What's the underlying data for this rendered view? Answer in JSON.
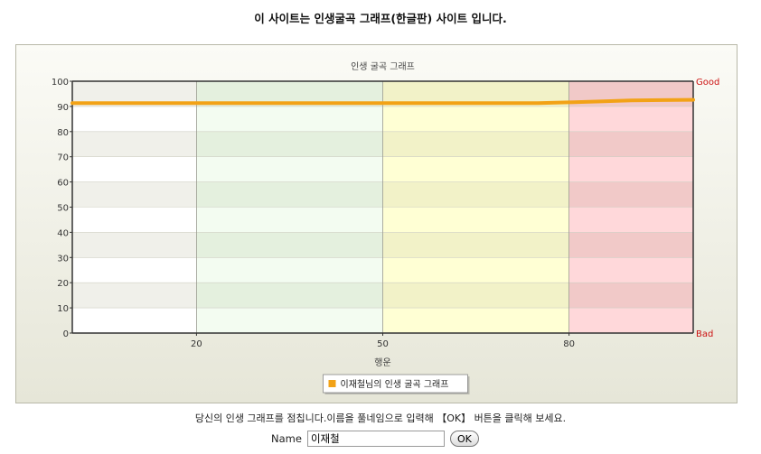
{
  "page": {
    "title": "이 사이트는 인생굴곡 그래프(한글판) 사이트 입니다.",
    "instruction": "당신의 인생 그래프를 점칩니다.이름을 풀네임으로 입력해 【OK】 버튼을 클릭해 보세요."
  },
  "form": {
    "name_label": "Name",
    "name_value": "이재철",
    "ok_label": "OK"
  },
  "chart_data": {
    "type": "line",
    "title": "인생 굴곡 그래프",
    "xlabel": "행운",
    "ylabel": "",
    "xlim": [
      0,
      100
    ],
    "ylim": [
      0,
      100
    ],
    "yticks": [
      0,
      10,
      20,
      30,
      40,
      50,
      60,
      70,
      80,
      90,
      100
    ],
    "xticks": [
      20,
      50,
      80
    ],
    "top_label": "Good",
    "bottom_label": "Bad",
    "grid": true,
    "legend_position": "bottom-center",
    "bands": [
      {
        "from": 0,
        "to": 20,
        "color_light": "#ffffff",
        "color_dark": "#f0f0ea"
      },
      {
        "from": 20,
        "to": 50,
        "color_light": "#f3fcf1",
        "color_dark": "#e4f0de"
      },
      {
        "from": 50,
        "to": 80,
        "color_light": "#ffffd4",
        "color_dark": "#f2f2c8"
      },
      {
        "from": 80,
        "to": 100,
        "color_light": "#ffd8da",
        "color_dark": "#f1c9c8"
      }
    ],
    "series": [
      {
        "name": "이재철님의 인생 굴곡 그래프",
        "color": "#f2a216",
        "x": [
          0,
          10,
          20,
          30,
          40,
          50,
          60,
          70,
          75,
          80,
          85,
          90,
          95,
          100
        ],
        "y": [
          91.3,
          91.3,
          91.3,
          91.3,
          91.3,
          91.3,
          91.3,
          91.3,
          91.3,
          91.6,
          92.0,
          92.4,
          92.5,
          92.6
        ]
      }
    ]
  }
}
